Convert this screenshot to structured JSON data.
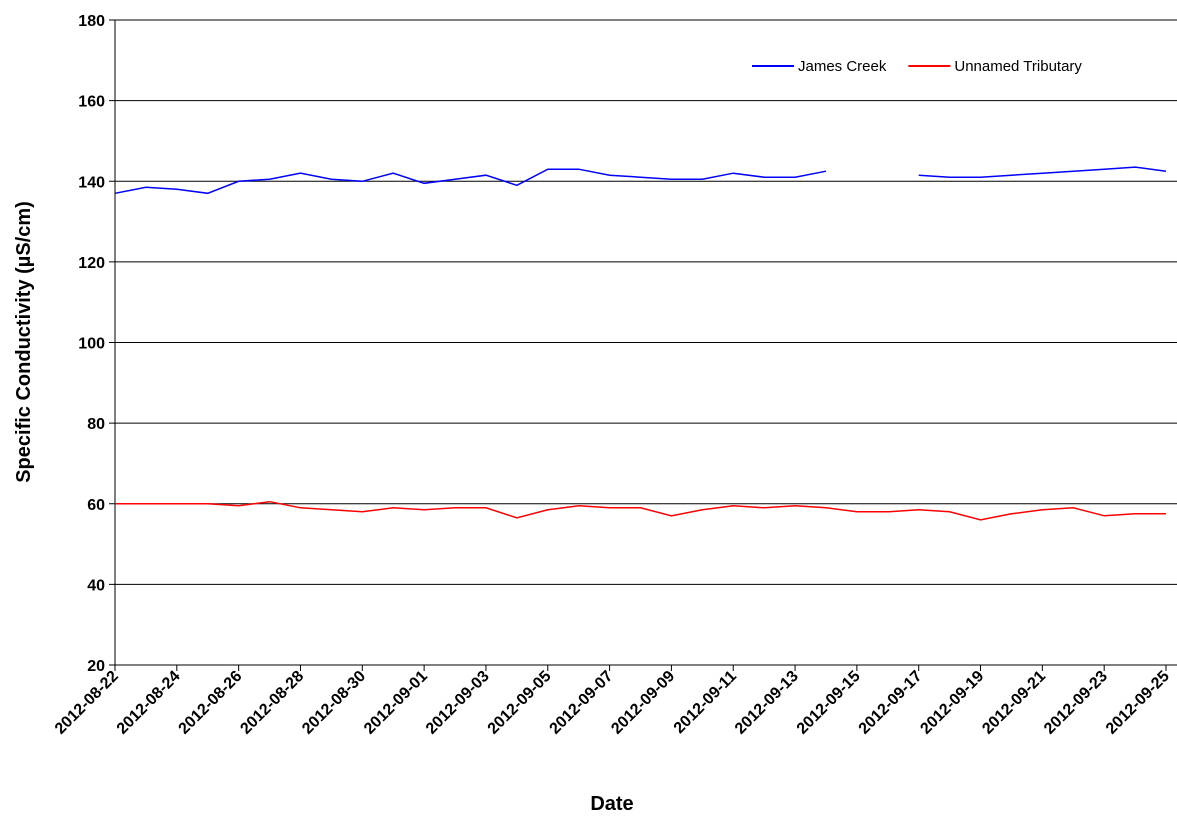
{
  "chart_data": {
    "type": "line",
    "x_label": "Date",
    "y_label": "Specific Conductivity (µS/cm)",
    "x": [
      "2012-08-22",
      "2012-08-23",
      "2012-08-24",
      "2012-08-25",
      "2012-08-26",
      "2012-08-27",
      "2012-08-28",
      "2012-08-29",
      "2012-08-30",
      "2012-08-31",
      "2012-09-01",
      "2012-09-02",
      "2012-09-03",
      "2012-09-04",
      "2012-09-05",
      "2012-09-06",
      "2012-09-07",
      "2012-09-08",
      "2012-09-09",
      "2012-09-10",
      "2012-09-11",
      "2012-09-12",
      "2012-09-13",
      "2012-09-14",
      "2012-09-15",
      "2012-09-16",
      "2012-09-17",
      "2012-09-18",
      "2012-09-19",
      "2012-09-20",
      "2012-09-21",
      "2012-09-22",
      "2012-09-23",
      "2012-09-24",
      "2012-09-25"
    ],
    "series": [
      {
        "name": "James Creek",
        "color": "#0000ff",
        "values": [
          137,
          138.5,
          138,
          137,
          140,
          140.5,
          142,
          140.5,
          140,
          142,
          139.5,
          140.5,
          141.5,
          139,
          143,
          143,
          141.5,
          141,
          140.5,
          140.5,
          142,
          141,
          141,
          142.5,
          null,
          null,
          141.5,
          141,
          141,
          141.5,
          142,
          142.5,
          143,
          143.5,
          142.5
        ]
      },
      {
        "name": "Unnamed Tributary",
        "color": "#ff0000",
        "values": [
          60,
          60,
          60,
          60,
          59.5,
          60.5,
          59,
          58.5,
          58,
          59,
          58.5,
          59,
          59,
          56.5,
          58.5,
          59.5,
          59,
          59,
          57,
          58.5,
          59.5,
          59,
          59.5,
          59,
          58,
          58,
          58.5,
          58,
          56,
          57.5,
          58.5,
          59,
          57,
          57.5,
          57.5
        ]
      }
    ],
    "xlim": [
      "2012-08-22",
      "2012-09-25"
    ],
    "xticks": [
      "2012-08-22",
      "2012-08-24",
      "2012-08-26",
      "2012-08-28",
      "2012-08-30",
      "2012-09-01",
      "2012-09-03",
      "2012-09-05",
      "2012-09-07",
      "2012-09-09",
      "2012-09-11",
      "2012-09-13",
      "2012-09-15",
      "2012-09-17",
      "2012-09-19",
      "2012-09-21",
      "2012-09-23",
      "2012-09-25"
    ],
    "ylim": [
      20,
      180
    ],
    "yticks": [
      20,
      40,
      60,
      80,
      100,
      120,
      140,
      160,
      180
    ],
    "grid": true,
    "legend": "top-right"
  }
}
